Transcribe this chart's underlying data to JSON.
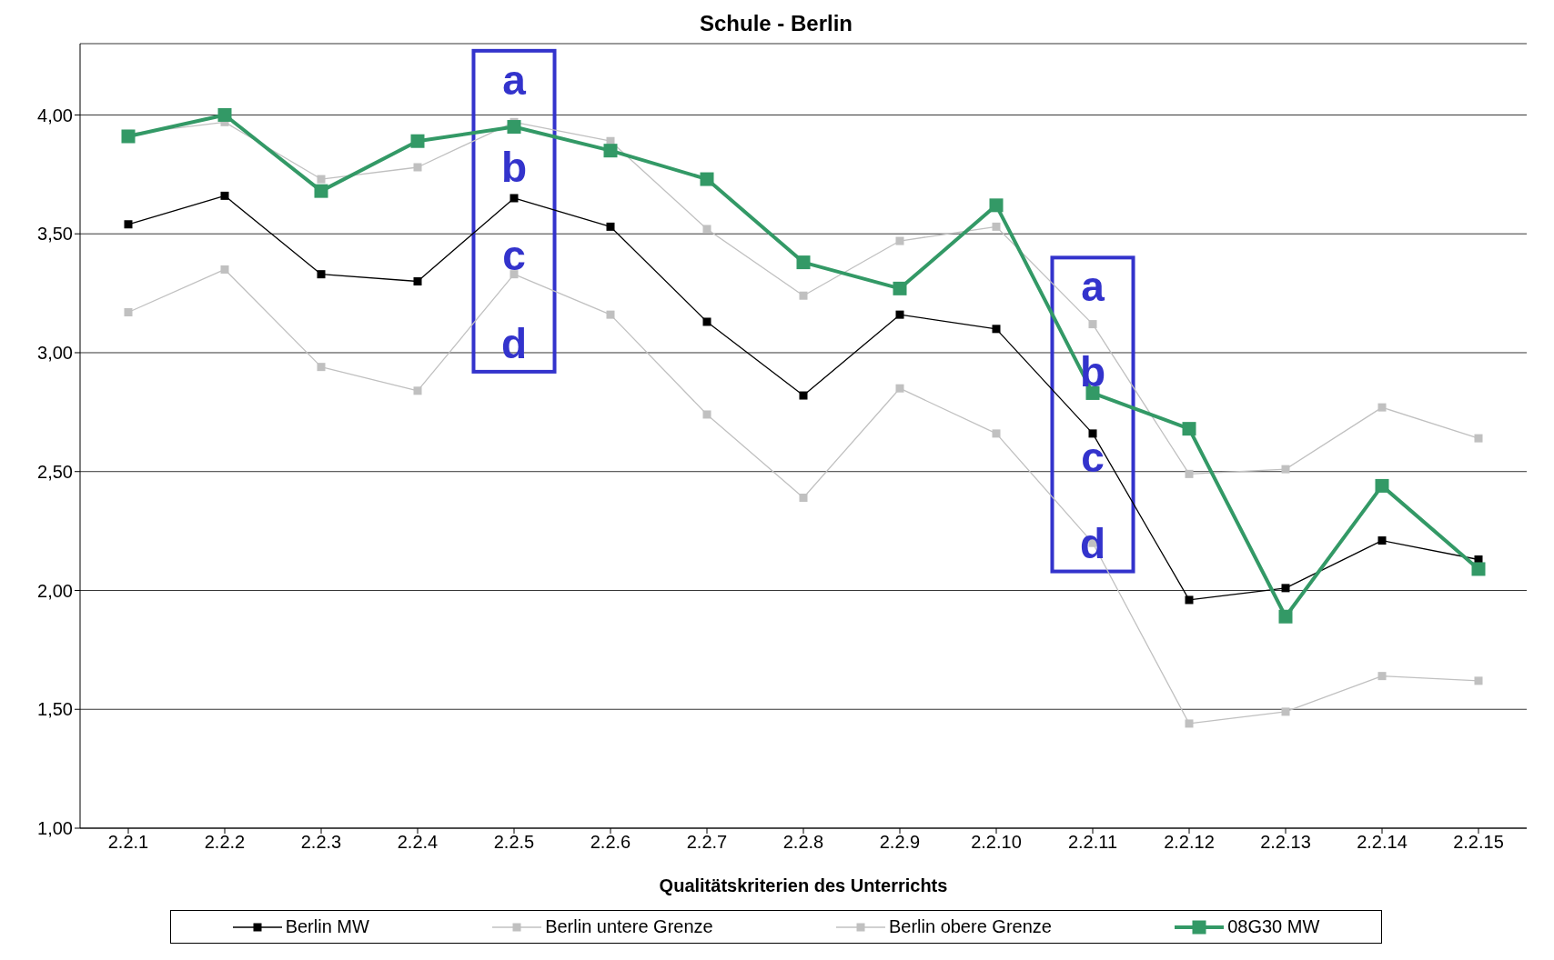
{
  "chart_data": {
    "type": "line",
    "title": "Schule - Berlin",
    "xlabel": "Qualitätskriterien des Unterrichts",
    "categories": [
      "2.2.1",
      "2.2.2",
      "2.2.3",
      "2.2.4",
      "2.2.5",
      "2.2.6",
      "2.2.7",
      "2.2.8",
      "2.2.9",
      "2.2.10",
      "2.2.11",
      "2.2.12",
      "2.2.13",
      "2.2.14",
      "2.2.15"
    ],
    "series": [
      {
        "name": "Berlin MW",
        "color": "#000000",
        "values": [
          3.54,
          3.66,
          3.33,
          3.3,
          3.65,
          3.53,
          3.13,
          2.82,
          3.16,
          3.1,
          2.66,
          1.96,
          2.01,
          2.21,
          2.13
        ]
      },
      {
        "name": "Berlin untere Grenze",
        "color": "#c0c0c0",
        "values": [
          3.17,
          3.35,
          2.94,
          2.84,
          3.33,
          3.16,
          2.74,
          2.39,
          2.85,
          2.66,
          2.2,
          1.44,
          1.49,
          1.64,
          1.62
        ]
      },
      {
        "name": "Berlin obere Grenze",
        "color": "#c0c0c0",
        "values": [
          3.92,
          3.97,
          3.73,
          3.78,
          3.97,
          3.89,
          3.52,
          3.24,
          3.47,
          3.53,
          3.12,
          2.49,
          2.51,
          2.77,
          2.64
        ]
      },
      {
        "name": "08G30 MW",
        "color": "#339966",
        "values": [
          3.91,
          4.0,
          3.68,
          3.89,
          3.95,
          3.85,
          3.73,
          3.38,
          3.27,
          3.62,
          2.83,
          2.68,
          1.89,
          2.44,
          2.09
        ]
      }
    ],
    "ylim": [
      1,
      4.3
    ],
    "yticks": [
      {
        "value": 1,
        "label": "1,00"
      },
      {
        "value": 1.5,
        "label": "1,50"
      },
      {
        "value": 2,
        "label": "2,00"
      },
      {
        "value": 2.5,
        "label": "2,50"
      },
      {
        "value": 3,
        "label": "3,00"
      },
      {
        "value": 3.5,
        "label": "3,50"
      },
      {
        "value": 4,
        "label": "4,00"
      }
    ],
    "annotations": [
      "a",
      "b",
      "c",
      "d",
      "a",
      "b",
      "c",
      "d"
    ],
    "grid": "y",
    "legend": "bottom",
    "marker": "square",
    "line_style": "solid"
  }
}
